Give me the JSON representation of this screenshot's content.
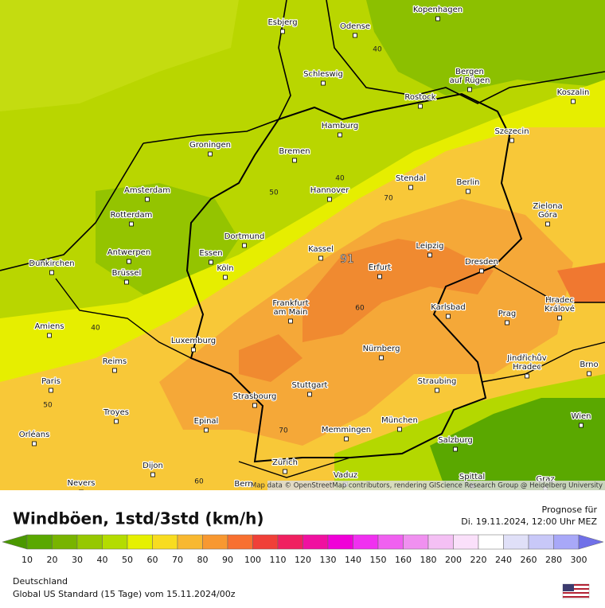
{
  "header": {
    "title": "Windböen, 1std/3std (km/h)",
    "forecast_label": "Prognose für",
    "forecast_time": "Di. 19.11.2024, 12:00 Uhr MEZ"
  },
  "map": {
    "attribution": "Map data © OpenStreetMap contributors, rendering GIScience Research Group @ Heidelberg University",
    "cities": [
      [
        "Esbjerg"
      ],
      [
        "Kopenhagen"
      ],
      [
        "Odense"
      ],
      [
        "Schleswig"
      ],
      [
        "Bergen",
        "auf Rügen"
      ],
      [
        "Rostock"
      ],
      [
        "Koszalin"
      ],
      [
        "Hamburg"
      ],
      [
        "Szczecin"
      ],
      [
        "Groningen"
      ],
      [
        "Bremen"
      ],
      [
        "Amsterdam"
      ],
      [
        "Stendal"
      ],
      [
        "Berlin"
      ],
      [
        "Hannover"
      ],
      [
        "Rotterdam"
      ],
      [
        "Zielona",
        "Góra"
      ],
      [
        "Dortmund"
      ],
      [
        "Antwerpen"
      ],
      [
        "Essen"
      ],
      [
        "Kassel"
      ],
      [
        "Leipzig"
      ],
      [
        "Dunkirchen"
      ],
      [
        "Brüssel"
      ],
      [
        "Köln"
      ],
      [
        "Erfurt"
      ],
      [
        "Dresden"
      ],
      [
        "Frankfurt",
        "am Main"
      ],
      [
        "Karlsbad"
      ],
      [
        "Hradec",
        "Králové"
      ],
      [
        "Amiens"
      ],
      [
        "Prag"
      ],
      [
        "Luxemburg"
      ],
      [
        "Reims"
      ],
      [
        "Nürnberg"
      ],
      [
        "Jindřichův",
        "Hradec"
      ],
      [
        "Brno"
      ],
      [
        "Paris"
      ],
      [
        "Straubing"
      ],
      [
        "Stuttgart"
      ],
      [
        "Strasbourg"
      ],
      [
        "Troyes"
      ],
      [
        "Epinal"
      ],
      [
        "München"
      ],
      [
        "Wien"
      ],
      [
        "Memmingen"
      ],
      [
        "Orléans"
      ],
      [
        "Salzburg"
      ],
      [
        "Dijon"
      ],
      [
        "Zürich"
      ],
      [
        "Vaduz"
      ],
      [
        "Spittal"
      ],
      [
        "Nevers"
      ],
      [
        "Bern"
      ],
      [
        "Graz"
      ]
    ],
    "contour_labels": [
      40,
      50,
      70,
      91,
      60,
      40,
      50,
      70,
      60,
      40
    ]
  },
  "legend": {
    "ticks": [
      10,
      20,
      30,
      40,
      50,
      60,
      70,
      80,
      90,
      100,
      110,
      120,
      130,
      140,
      150,
      160,
      180,
      200,
      220,
      240,
      260,
      280,
      300
    ],
    "colors": [
      "#4a9800",
      "#5aa800",
      "#78b400",
      "#96c800",
      "#b4dc00",
      "#e6f000",
      "#f8dc20",
      "#f8b830",
      "#f89830",
      "#f87030",
      "#f04038",
      "#f02060",
      "#f010a0",
      "#f000d8",
      "#f030f0",
      "#f060f0",
      "#f090f0",
      "#f4c0f4",
      "#fae0fa",
      "#ffffff",
      "#e0e0f8",
      "#c8c8f8",
      "#a8a8f8",
      "#8888f0",
      "#7070e8"
    ]
  },
  "footer": {
    "region": "Deutschland",
    "model": "Global US Standard (15 Tage) vom  15.11.2024/00z"
  }
}
